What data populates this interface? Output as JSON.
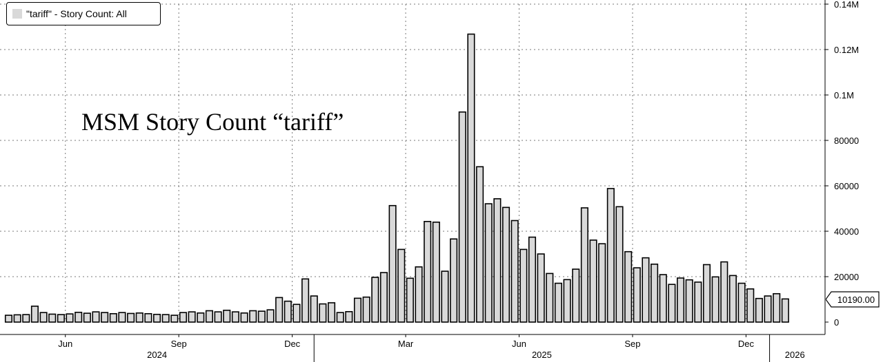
{
  "chart_data": {
    "type": "bar",
    "title": "MSM Story Count “tariff”",
    "legend": {
      "label": "\"tariff\" - Story Count: All",
      "placement": "top-left"
    },
    "last_value_label": "10190.00",
    "ylim": [
      0,
      140000
    ],
    "y_ticks": [
      {
        "value": 0,
        "label": "0"
      },
      {
        "value": 20000,
        "label": "20000"
      },
      {
        "value": 40000,
        "label": "40000"
      },
      {
        "value": 60000,
        "label": "60000"
      },
      {
        "value": 80000,
        "label": "80000"
      },
      {
        "value": 100000,
        "label": "0.1M"
      },
      {
        "value": 120000,
        "label": "0.12M"
      },
      {
        "value": 140000,
        "label": "0.14M"
      }
    ],
    "x_month_labels": [
      {
        "label": "Jun",
        "week_index": 6.5
      },
      {
        "label": "Sep",
        "week_index": 19.5
      },
      {
        "label": "Dec",
        "week_index": 32.5
      },
      {
        "label": "Mar",
        "week_index": 45.5
      },
      {
        "label": "Jun",
        "week_index": 58.5
      },
      {
        "label": "Sep",
        "week_index": 71.5
      },
      {
        "label": "Dec",
        "week_index": 84.5
      }
    ],
    "x_year_labels": [
      {
        "label": "2024",
        "from_week": -6,
        "to_week": 35
      },
      {
        "label": "2025",
        "from_week": 35,
        "to_week": 87.2
      },
      {
        "label": "2026",
        "from_week": 87.2,
        "to_week": 93
      }
    ],
    "grid": true,
    "bar_color": "#d9d9d9",
    "values": [
      3000,
      3200,
      3300,
      7000,
      4200,
      3500,
      3300,
      3600,
      4300,
      3900,
      4500,
      4200,
      3700,
      4200,
      3800,
      4000,
      3700,
      3400,
      3300,
      3000,
      4200,
      4500,
      4000,
      5000,
      4500,
      5200,
      4500,
      4000,
      5000,
      4800,
      5400,
      10800,
      9200,
      7800,
      19000,
      11500,
      8000,
      8500,
      4200,
      4600,
      10500,
      11000,
      19700,
      21800,
      51300,
      32000,
      19300,
      24300,
      44300,
      44000,
      22400,
      36600,
      92500,
      126800,
      68400,
      52100,
      54300,
      50500,
      44700,
      32000,
      37400,
      30000,
      21400,
      17100,
      18700,
      23300,
      50300,
      36100,
      34500,
      58800,
      50800,
      31000,
      23900,
      28300,
      25500,
      20900,
      16600,
      19400,
      18600,
      17600,
      25300,
      19900,
      26500,
      20500,
      17100,
      14600,
      10400,
      11500,
      12500,
      10190
    ]
  }
}
